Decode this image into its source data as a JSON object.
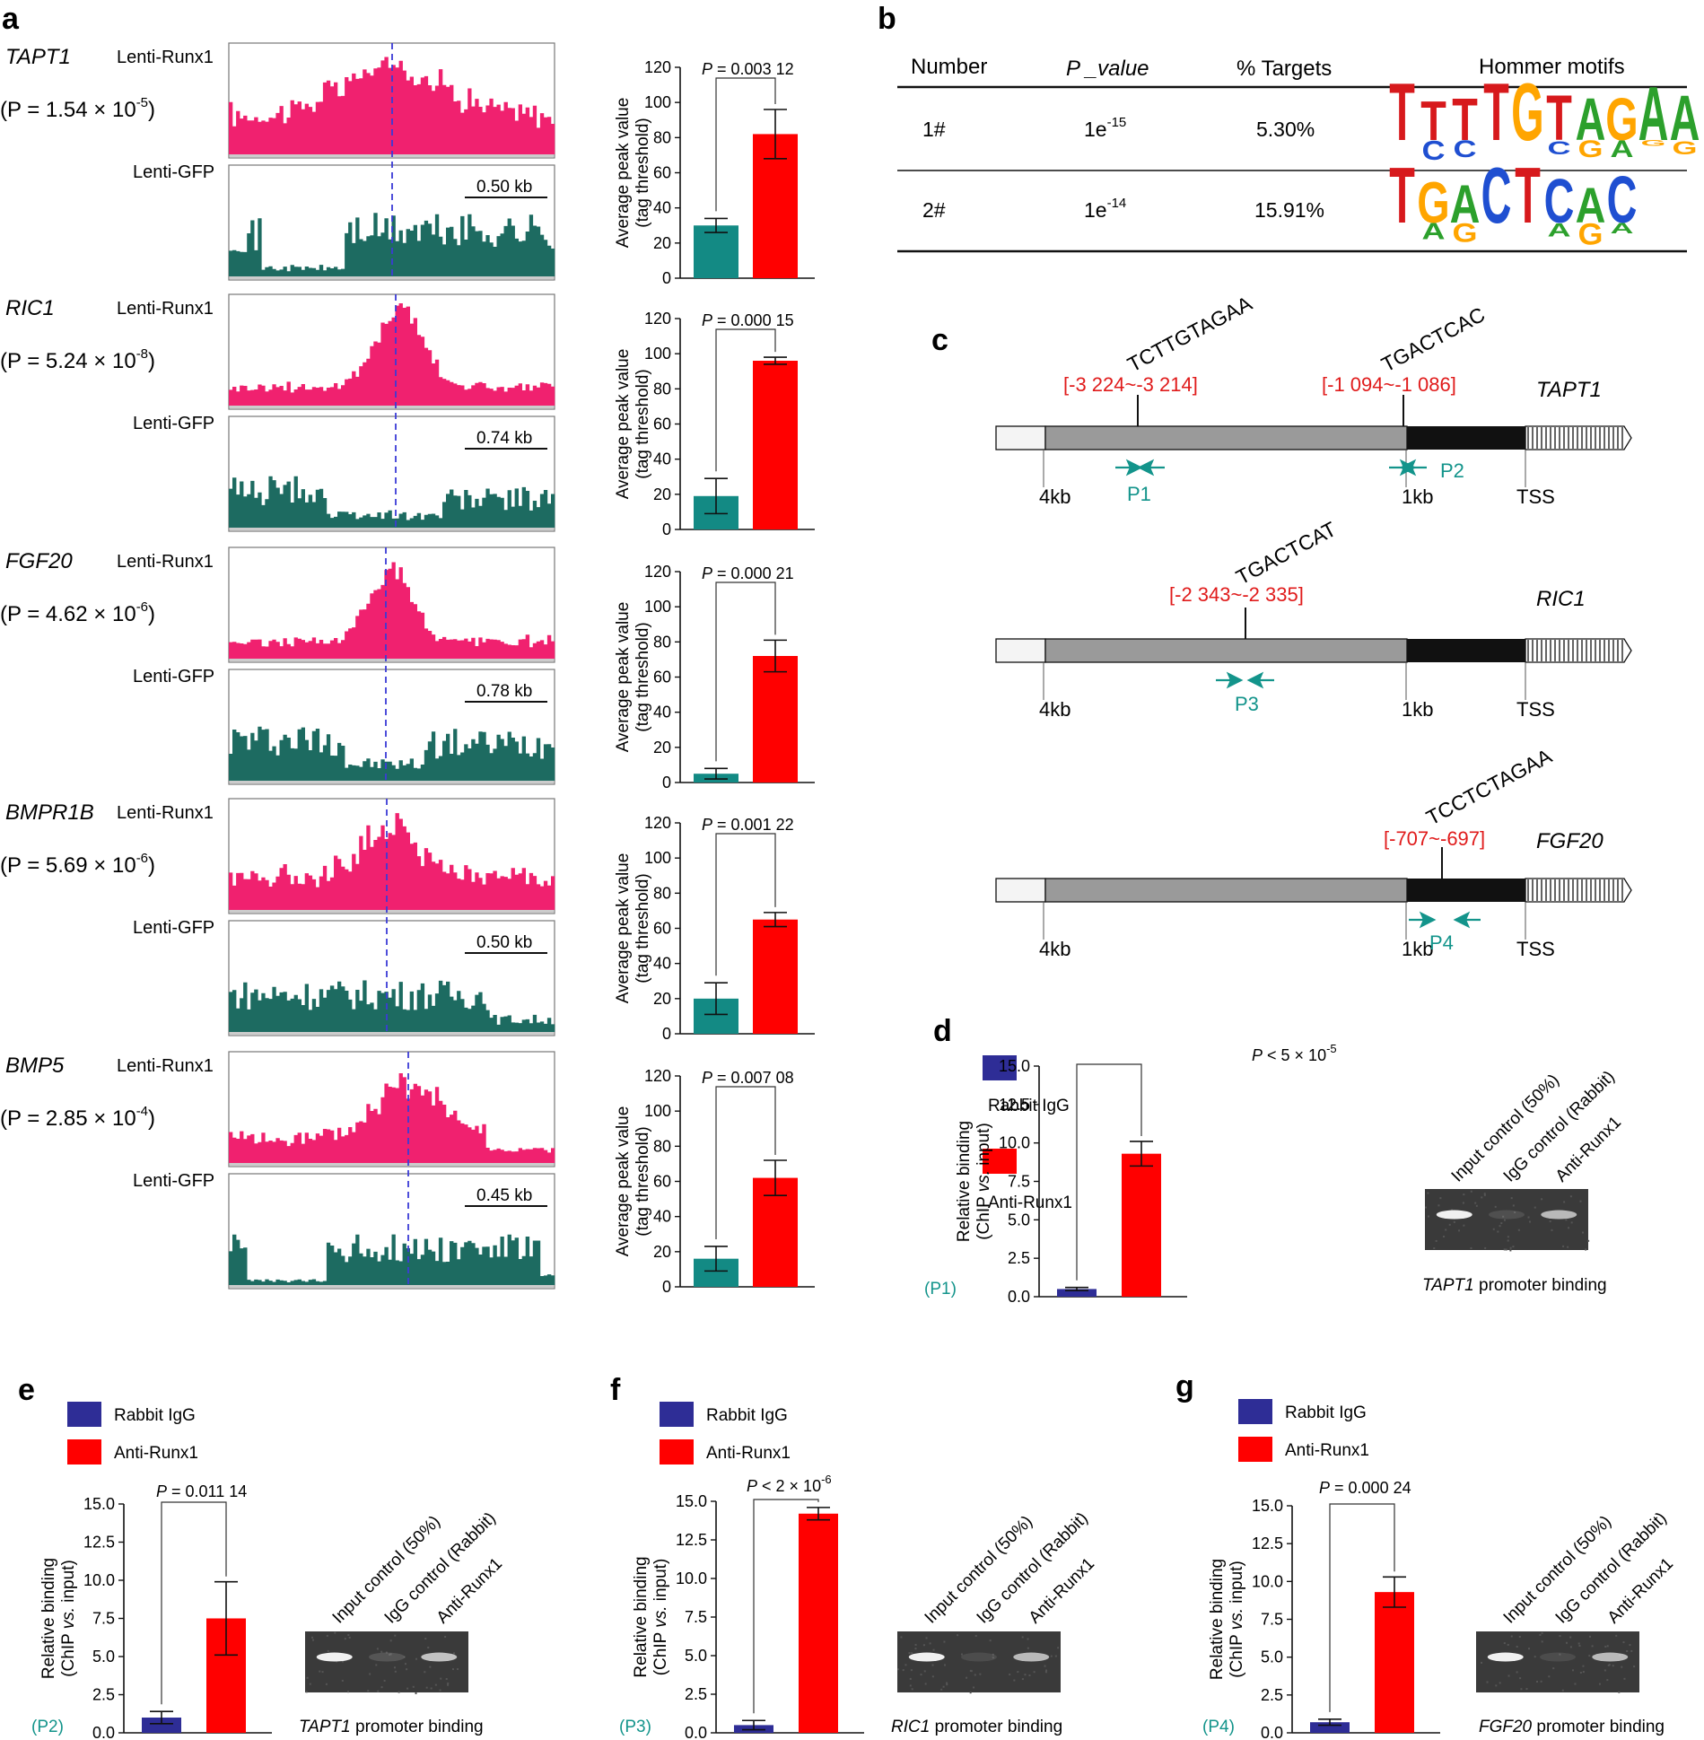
{
  "panel_labels": {
    "a": "a",
    "b": "b",
    "c": "c",
    "d": "d",
    "e": "e",
    "f": "f",
    "g": "g"
  },
  "colors": {
    "runx1": "#f0216f",
    "gfp": "#1d6b61",
    "teal_bar": "#138a84",
    "red_bar": "#ff0000",
    "igg": "#2e2d96",
    "motif_red": "#cc1f1f",
    "primer": "#13948b",
    "region": "#e01b1b"
  },
  "panel_a": {
    "tracks": [
      {
        "gene": "TAPT1",
        "pval": "(P = 1.54 × 10",
        "exp": "-5",
        "close": ")",
        "runx1_label": "Lenti-Runx1",
        "gfp_label": "Lenti-GFP",
        "scale": "0.50 kb"
      },
      {
        "gene": "RIC1",
        "pval": "(P = 5.24 × 10",
        "exp": "-8",
        "close": ")",
        "runx1_label": "Lenti-Runx1",
        "gfp_label": "Lenti-GFP",
        "scale": "0.74 kb"
      },
      {
        "gene": "FGF20",
        "pval": "(P = 4.62 × 10",
        "exp": "-6",
        "close": ")",
        "runx1_label": "Lenti-Runx1",
        "gfp_label": "Lenti-GFP",
        "scale": "0.78 kb"
      },
      {
        "gene": "BMPR1B",
        "pval": "(P = 5.69 × 10",
        "exp": "-6",
        "close": ")",
        "runx1_label": "Lenti-Runx1",
        "gfp_label": "Lenti-GFP",
        "scale": "0.50 kb"
      },
      {
        "gene": "BMP5",
        "pval": "(P = 2.85 × 10",
        "exp": "-4",
        "close": ")",
        "runx1_label": "Lenti-Runx1",
        "gfp_label": "Lenti-GFP",
        "scale": "0.45 kb"
      }
    ]
  },
  "panel_b": {
    "headers": [
      "Number",
      "P _value",
      "% Targets",
      "Hommer motifs"
    ],
    "rows": [
      {
        "number": "1#",
        "pval": "1e",
        "pexp": "-15",
        "targets": "5.30%",
        "motif": "TTTTGTAGAA"
      },
      {
        "number": "2#",
        "pval": "1e",
        "pexp": "-14",
        "targets": "15.91%",
        "motif": "TGACTCAC"
      }
    ]
  },
  "panel_c": {
    "genes": [
      {
        "gene": "TAPT1",
        "sites": [
          {
            "seq": "TCTTGTAGAA",
            "region": "[-3 224~-3 214]"
          },
          {
            "seq": "TGACTCAC",
            "region": "[-1 094~-1 086]"
          }
        ],
        "primers": [
          "P1",
          "P2"
        ],
        "ticks": [
          "4kb",
          "1kb",
          "TSS"
        ]
      },
      {
        "gene": "RIC1",
        "sites": [
          {
            "seq": "TGACTCAT",
            "region": "[-2 343~-2 335]"
          }
        ],
        "primers": [
          "P3"
        ],
        "ticks": [
          "4kb",
          "1kb",
          "TSS"
        ]
      },
      {
        "gene": "FGF20",
        "sites": [
          {
            "seq": "TCCTCTAGAA",
            "region": "[-707~-697]"
          }
        ],
        "primers": [
          "P4"
        ],
        "ticks": [
          "4kb",
          "1kb",
          "TSS"
        ]
      }
    ]
  },
  "chip_panels": {
    "legend": {
      "igg": "Rabbit IgG",
      "runx1": "Anti-Runx1"
    },
    "ylabel1": "Relative binding",
    "ylabel2": "(ChIP vs. input)",
    "lanes": [
      "Input control (50%)",
      "IgG control (Rabbit)",
      "Anti-Runx1"
    ],
    "d": {
      "primer": "(P1)",
      "caption_gene": "TAPT1",
      "caption_rest": " promoter binding",
      "pval": "P < 5 × 10",
      "pexp": "-5"
    },
    "e": {
      "primer": "(P2)",
      "caption_gene": "TAPT1",
      "caption_rest": " promoter binding",
      "pval": "P = 0.011 14",
      "pexp": ""
    },
    "f": {
      "primer": "(P3)",
      "caption_gene": "RIC1",
      "caption_rest": " promoter binding",
      "pval": "P < 2 × 10",
      "pexp": "-6"
    },
    "g": {
      "primer": "(P4)",
      "caption_gene": "FGF20",
      "caption_rest": " promoter binding",
      "pval": "P = 0.000 24",
      "pexp": ""
    }
  },
  "chart_data": [
    {
      "type": "bar",
      "panel": "a-TAPT1",
      "ylabel": "Average peak value (tag threshold)",
      "ylim": [
        0,
        120
      ],
      "yticks": [
        0,
        20,
        40,
        60,
        80,
        100,
        120
      ],
      "categories": [
        "Lenti-GFP",
        "Lenti-Runx1"
      ],
      "values": [
        30,
        82
      ],
      "errors": [
        4,
        14
      ],
      "annotation": "P = 0.003 12"
    },
    {
      "type": "bar",
      "panel": "a-RIC1",
      "ylabel": "Average peak value (tag threshold)",
      "ylim": [
        0,
        120
      ],
      "yticks": [
        0,
        20,
        40,
        60,
        80,
        100,
        120
      ],
      "categories": [
        "Lenti-GFP",
        "Lenti-Runx1"
      ],
      "values": [
        19,
        96
      ],
      "errors": [
        10,
        2
      ],
      "annotation": "P = 0.000 15"
    },
    {
      "type": "bar",
      "panel": "a-FGF20",
      "ylabel": "Average peak value (tag threshold)",
      "ylim": [
        0,
        120
      ],
      "yticks": [
        0,
        20,
        40,
        60,
        80,
        100,
        120
      ],
      "categories": [
        "Lenti-GFP",
        "Lenti-Runx1"
      ],
      "values": [
        5,
        72
      ],
      "errors": [
        3,
        9
      ],
      "annotation": "P = 0.000 21"
    },
    {
      "type": "bar",
      "panel": "a-BMPR1B",
      "ylabel": "Average peak value (tag threshold)",
      "ylim": [
        0,
        120
      ],
      "yticks": [
        0,
        20,
        40,
        60,
        80,
        100,
        120
      ],
      "categories": [
        "Lenti-GFP",
        "Lenti-Runx1"
      ],
      "values": [
        20,
        65
      ],
      "errors": [
        9,
        4
      ],
      "annotation": "P = 0.001 22"
    },
    {
      "type": "bar",
      "panel": "a-BMP5",
      "ylabel": "Average peak value (tag threshold)",
      "ylim": [
        0,
        120
      ],
      "yticks": [
        0,
        20,
        40,
        60,
        80,
        100,
        120
      ],
      "categories": [
        "Lenti-GFP",
        "Lenti-Runx1"
      ],
      "values": [
        16,
        62
      ],
      "errors": [
        7,
        10
      ],
      "annotation": "P = 0.007 08"
    },
    {
      "type": "bar",
      "panel": "d",
      "ylabel": "Relative binding (ChIP vs. input)",
      "ylim": [
        0,
        15
      ],
      "yticks": [
        "0.0",
        "2.5",
        "5.0",
        "7.5",
        "10.0",
        "12.5",
        "15.0"
      ],
      "categories": [
        "Rabbit IgG",
        "Anti-Runx1"
      ],
      "values": [
        0.5,
        9.3
      ],
      "errors": [
        0.1,
        0.8
      ]
    },
    {
      "type": "bar",
      "panel": "e",
      "ylabel": "Relative binding (ChIP vs. input)",
      "ylim": [
        0,
        15
      ],
      "yticks": [
        "0.0",
        "2.5",
        "5.0",
        "7.5",
        "10.0",
        "12.5",
        "15.0"
      ],
      "categories": [
        "Rabbit IgG",
        "Anti-Runx1"
      ],
      "values": [
        1.0,
        7.5
      ],
      "errors": [
        0.4,
        2.4
      ]
    },
    {
      "type": "bar",
      "panel": "f",
      "ylabel": "Relative binding (ChIP vs. input)",
      "ylim": [
        0,
        15
      ],
      "yticks": [
        "0.0",
        "2.5",
        "5.0",
        "7.5",
        "10.0",
        "12.5",
        "15.0"
      ],
      "categories": [
        "Rabbit IgG",
        "Anti-Runx1"
      ],
      "values": [
        0.5,
        14.2
      ],
      "errors": [
        0.3,
        0.4
      ]
    },
    {
      "type": "bar",
      "panel": "g",
      "ylabel": "Relative binding (ChIP vs. input)",
      "ylim": [
        0,
        15
      ],
      "yticks": [
        "0.0",
        "2.5",
        "5.0",
        "7.5",
        "10.0",
        "12.5",
        "15.0"
      ],
      "categories": [
        "Rabbit IgG",
        "Anti-Runx1"
      ],
      "values": [
        0.7,
        9.3
      ],
      "errors": [
        0.2,
        1.0
      ]
    }
  ]
}
